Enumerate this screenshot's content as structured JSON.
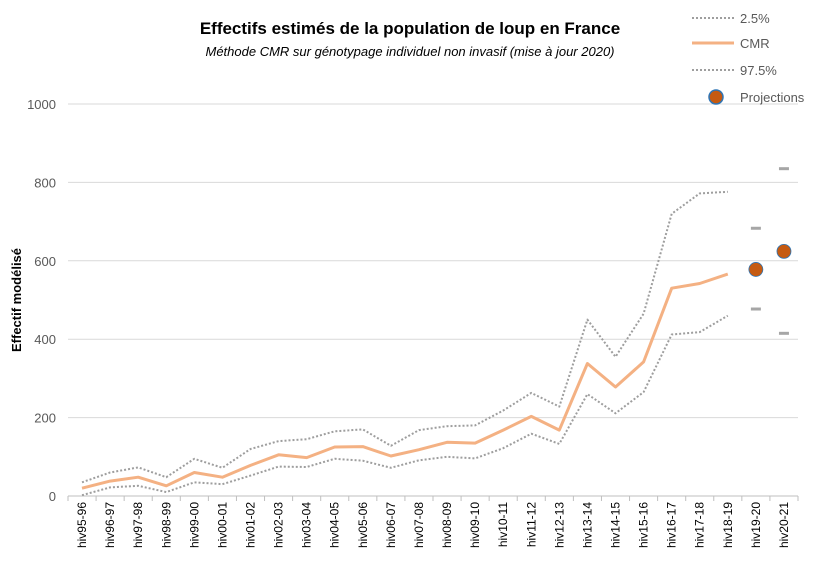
{
  "chart_data": {
    "type": "line",
    "title": "Effectifs estimés de la population  de loup en France",
    "subtitle": "Méthode CMR sur génotypage individuel non invasif (mise à jour 2020)",
    "xlabel": "",
    "ylabel": "Effectif modélisé",
    "ylim": [
      0,
      1000
    ],
    "yticks": [
      0,
      200,
      400,
      600,
      800,
      1000
    ],
    "grid": true,
    "legend_position": "top-right",
    "categories": [
      "hiv95-96",
      "hiv96-97",
      "hiv97-98",
      "hiv98-99",
      "hiv99-00",
      "hiv00-01",
      "hiv01-02",
      "hiv02-03",
      "hiv03-04",
      "hiv04-05",
      "hiv05-06",
      "hiv06-07",
      "hiv07-08",
      "hiv08-09",
      "hiv09-10",
      "hiv10-11",
      "hiv11-12",
      "hiv12-13",
      "hiv13-14",
      "hiv14-15",
      "hiv15-16",
      "hiv16-17",
      "hiv17-18",
      "hiv18-19",
      "hiv19-20",
      "hiv20-21"
    ],
    "series": [
      {
        "name": "2.5%",
        "style": "dotted",
        "color": "#9e9e9e",
        "values": [
          35,
          60,
          73,
          48,
          95,
          72,
          120,
          140,
          145,
          165,
          170,
          128,
          168,
          178,
          180,
          218,
          263,
          228,
          450,
          355,
          465,
          720,
          772,
          776,
          null,
          null
        ]
      },
      {
        "name": "CMR",
        "style": "solid",
        "color": "#f4b183",
        "values": [
          20,
          38,
          48,
          26,
          60,
          48,
          78,
          105,
          98,
          125,
          126,
          102,
          118,
          137,
          135,
          168,
          203,
          168,
          338,
          278,
          342,
          530,
          542,
          566,
          null,
          null
        ]
      },
      {
        "name": "97.5%",
        "style": "dotted",
        "color": "#9e9e9e",
        "values": [
          2,
          22,
          26,
          10,
          35,
          30,
          52,
          75,
          74,
          95,
          90,
          72,
          91,
          100,
          96,
          122,
          159,
          133,
          260,
          211,
          265,
          412,
          418,
          460,
          null,
          null
        ]
      },
      {
        "name": "Projections",
        "style": "point",
        "color": "#c55a11",
        "values": [
          null,
          null,
          null,
          null,
          null,
          null,
          null,
          null,
          null,
          null,
          null,
          null,
          null,
          null,
          null,
          null,
          null,
          null,
          null,
          null,
          null,
          null,
          null,
          null,
          578,
          624
        ],
        "upper": [
          null,
          null,
          null,
          null,
          null,
          null,
          null,
          null,
          null,
          null,
          null,
          null,
          null,
          null,
          null,
          null,
          null,
          null,
          null,
          null,
          null,
          null,
          null,
          null,
          683,
          835
        ],
        "lower": [
          null,
          null,
          null,
          null,
          null,
          null,
          null,
          null,
          null,
          null,
          null,
          null,
          null,
          null,
          null,
          null,
          null,
          null,
          null,
          null,
          null,
          null,
          null,
          null,
          477,
          415
        ]
      }
    ],
    "legend": [
      {
        "label": "2.5%",
        "symbol": "dotted-line"
      },
      {
        "label": "CMR",
        "symbol": "solid-line"
      },
      {
        "label": "97.5%",
        "symbol": "dotted-line"
      },
      {
        "label": "Projections",
        "symbol": "dot"
      }
    ],
    "colors": {
      "grid": "#d9d9d9",
      "axis": "#bfbfbf",
      "projection_bound": "#a6a6a6",
      "projection_edge": "#2e75b6"
    }
  }
}
